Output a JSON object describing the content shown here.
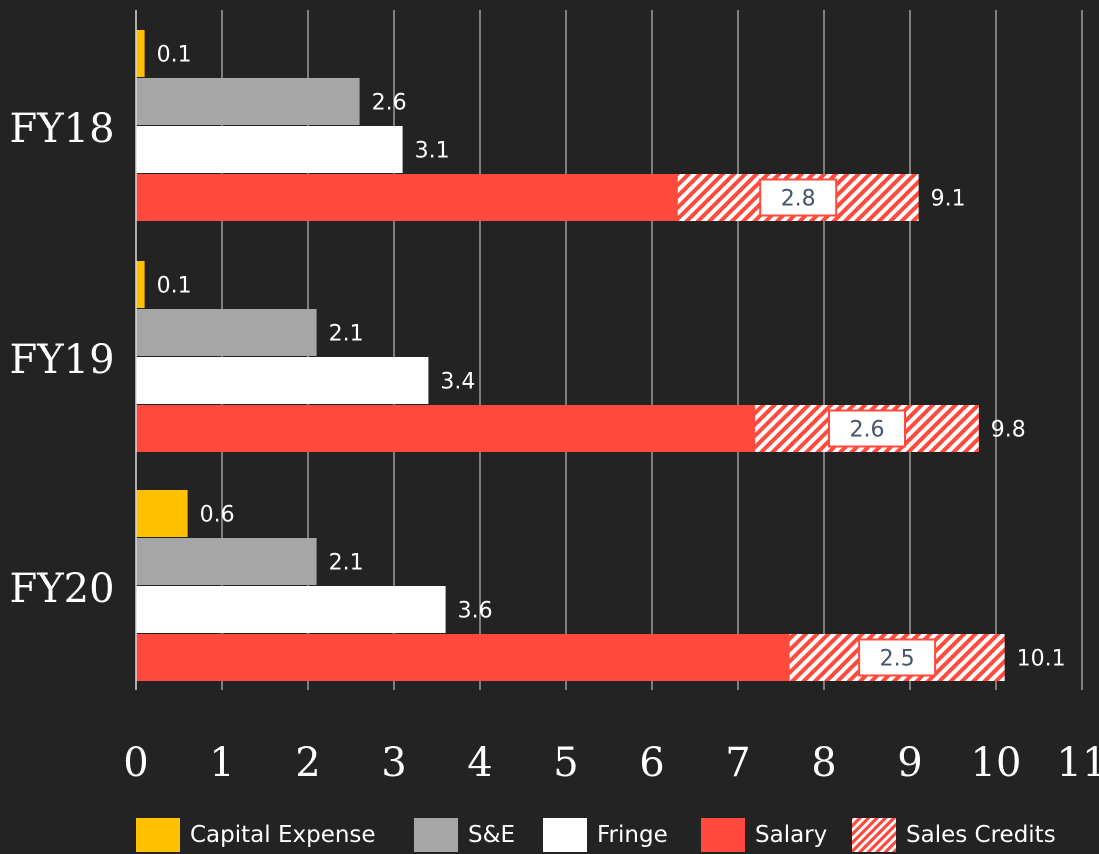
{
  "chart_data": {
    "type": "bar",
    "orientation": "horizontal",
    "stacked": false,
    "categories": [
      "FY18",
      "FY19",
      "FY20"
    ],
    "xlim": [
      0,
      11
    ],
    "x_ticks": [
      "0",
      "1",
      "2",
      "3",
      "4",
      "5",
      "6",
      "7",
      "8",
      "9",
      "10",
      "11"
    ],
    "grid": true,
    "legend_position": "bottom",
    "series": [
      {
        "name": "Capital Expense",
        "color": "#ffc000",
        "values": [
          0.1,
          0.1,
          0.6
        ],
        "labels": [
          "0.1",
          "0.1",
          "0.6"
        ]
      },
      {
        "name": "S&E",
        "color": "#a6a6a6",
        "values": [
          2.6,
          2.1,
          2.1
        ],
        "labels": [
          "2.6",
          "2.1",
          "2.1"
        ]
      },
      {
        "name": "Fringe",
        "color": "#ffffff",
        "values": [
          3.1,
          3.4,
          3.6
        ],
        "labels": [
          "3.1",
          "3.4",
          "3.6"
        ]
      },
      {
        "name": "Salary",
        "color": "#ff4a3d",
        "values": [
          9.1,
          9.8,
          10.1
        ],
        "labels": [
          "9.1",
          "9.8",
          "10.1"
        ]
      }
    ],
    "sales_credits": {
      "name": "Sales Credits",
      "values": [
        2.8,
        2.6,
        2.5
      ],
      "labels": [
        "2.8",
        "2.6",
        "2.5"
      ]
    }
  },
  "legend": [
    {
      "name": "Capital Expense",
      "color": "#ffc000"
    },
    {
      "name": "S&E",
      "color": "#a6a6a6"
    },
    {
      "name": "Fringe",
      "color": "#ffffff"
    },
    {
      "name": "Salary",
      "color": "#ff4a3d"
    },
    {
      "name": "Sales Credits",
      "pattern": "hatch"
    }
  ]
}
